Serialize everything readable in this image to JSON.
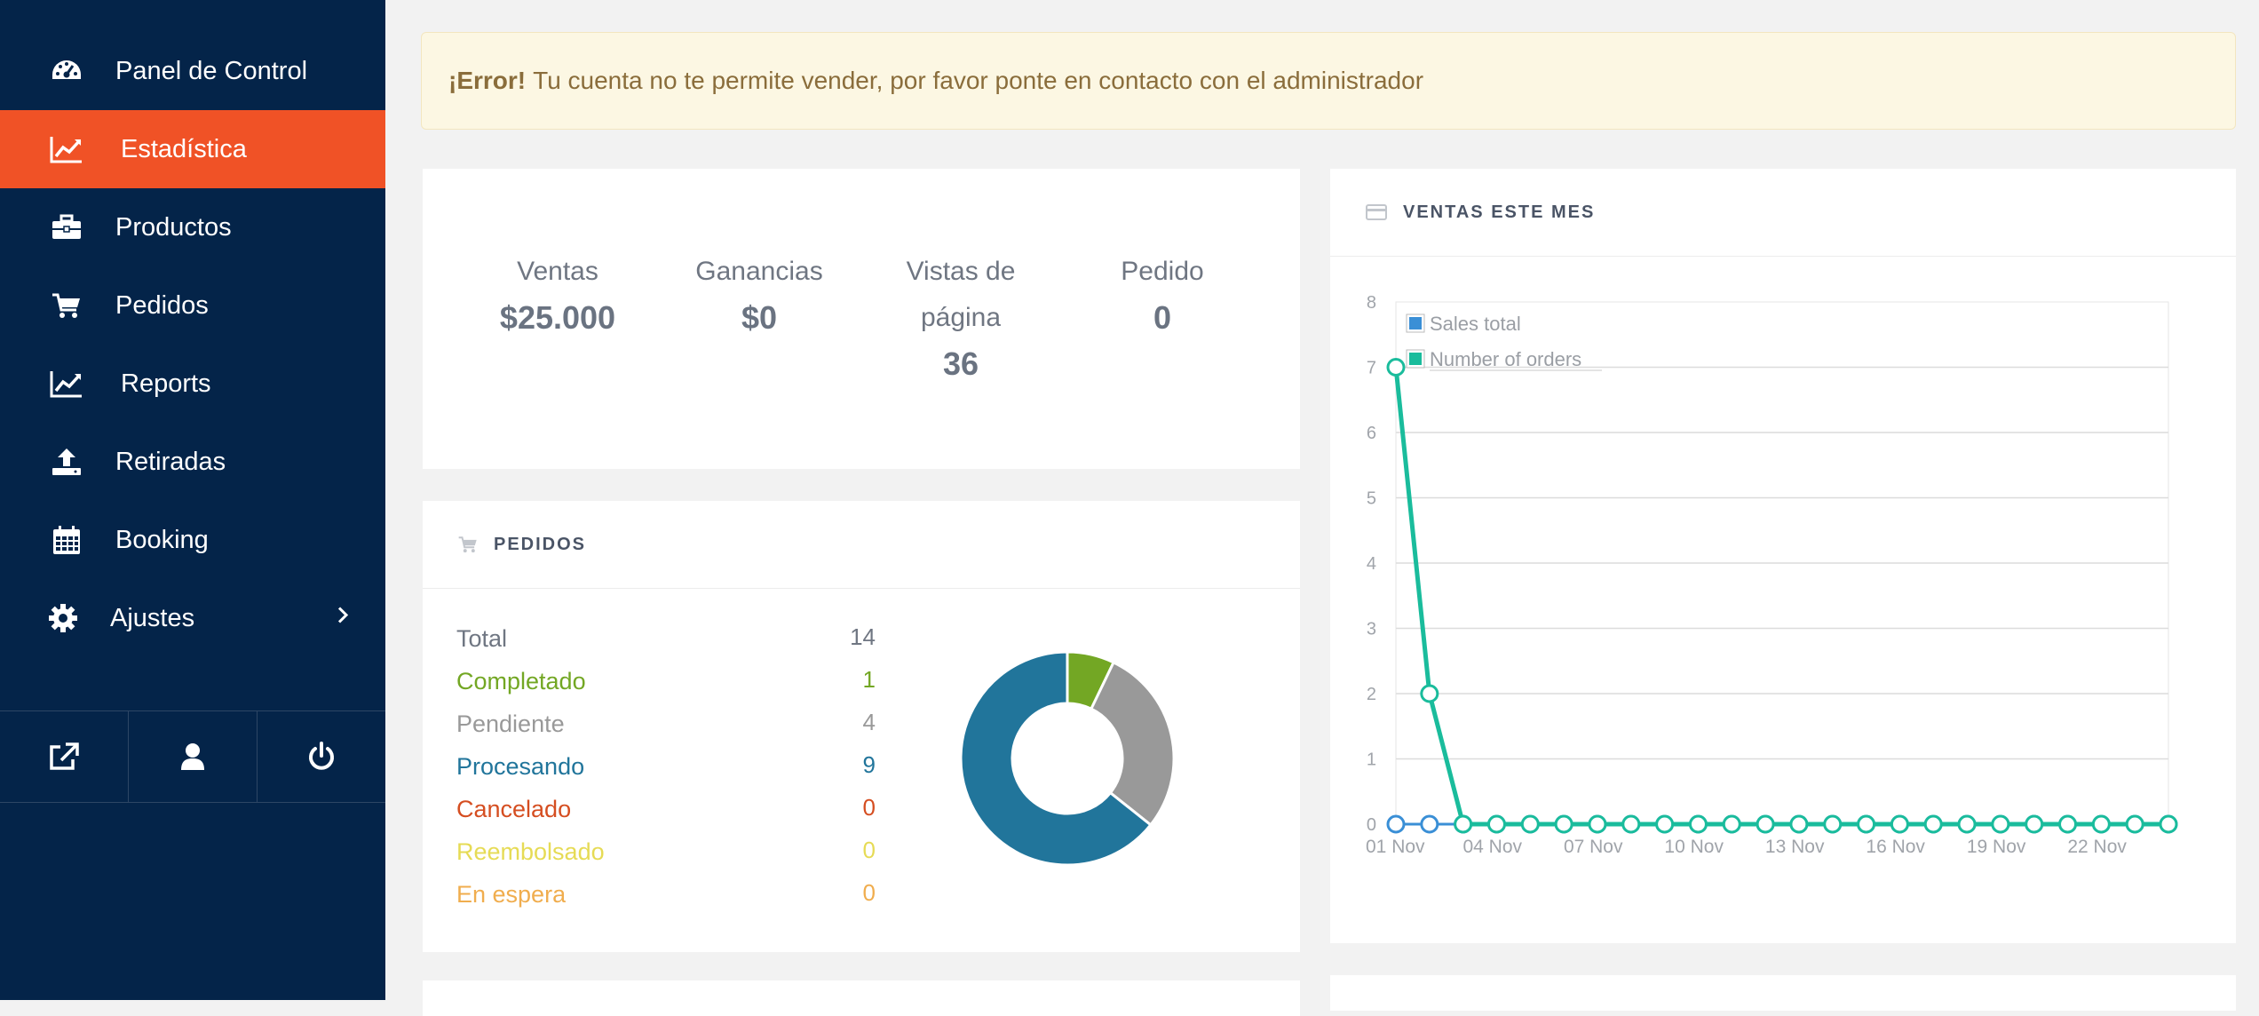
{
  "sidebar": {
    "items": [
      {
        "label": "Panel de Control",
        "icon": "dashboard-icon",
        "active": false
      },
      {
        "label": "Estadística",
        "icon": "line-chart-icon",
        "active": true
      },
      {
        "label": "Productos",
        "icon": "briefcase-icon",
        "active": false
      },
      {
        "label": "Pedidos",
        "icon": "cart-icon",
        "active": false
      },
      {
        "label": "Reports",
        "icon": "line-chart-icon",
        "active": false
      },
      {
        "label": "Retiradas",
        "icon": "upload-icon",
        "active": false
      },
      {
        "label": "Booking",
        "icon": "calendar-icon",
        "active": false
      },
      {
        "label": "Ajustes",
        "icon": "gear-icon",
        "active": false
      }
    ],
    "bottom_icons": [
      "external-link-icon",
      "user-icon",
      "power-icon"
    ],
    "colors": {
      "background": "#042449",
      "active": "#f05226"
    }
  },
  "alert": {
    "strong": "¡Error!",
    "message": "Tu cuenta no te permite vender, por favor ponte en contacto con el administrador"
  },
  "stats": {
    "sales": {
      "label": "Ventas",
      "value": "$25.000"
    },
    "earnings": {
      "label": "Ganancias",
      "value": "$0"
    },
    "pageviews": {
      "label": "Vistas de",
      "label2": "página",
      "value": "36"
    },
    "orders": {
      "label": "Pedido",
      "value": "0"
    }
  },
  "orders_card": {
    "title": "PEDIDOS",
    "rows": [
      {
        "label": "Total",
        "count": "14",
        "color": "#6f7682"
      },
      {
        "label": "Completado",
        "count": "1",
        "color": "#73a724"
      },
      {
        "label": "Pendiente",
        "count": "4",
        "color": "#999999"
      },
      {
        "label": "Procesando",
        "count": "9",
        "color": "#21759b"
      },
      {
        "label": "Cancelado",
        "count": "0",
        "color": "#d54e21"
      },
      {
        "label": "Reembolsado",
        "count": "0",
        "color": "#e6db55"
      },
      {
        "label": "En espera",
        "count": "0",
        "color": "#f0ad4e"
      }
    ]
  },
  "sales_card": {
    "title": "VENTAS ESTE MES"
  },
  "chart_data": [
    {
      "type": "pie",
      "subtype": "donut",
      "labels": [
        "Completado",
        "Pendiente",
        "Procesando"
      ],
      "values": [
        1,
        4,
        9
      ],
      "colors": [
        "#73a724",
        "#999999",
        "#21759b"
      ]
    },
    {
      "type": "line",
      "x": [
        "01 Nov",
        "02 Nov",
        "03 Nov",
        "04 Nov",
        "05 Nov",
        "06 Nov",
        "07 Nov",
        "08 Nov",
        "09 Nov",
        "10 Nov",
        "11 Nov",
        "12 Nov",
        "13 Nov",
        "14 Nov",
        "15 Nov",
        "16 Nov",
        "17 Nov",
        "18 Nov",
        "19 Nov",
        "20 Nov",
        "21 Nov",
        "22 Nov",
        "23 Nov",
        "24 Nov"
      ],
      "xticks": [
        "01 Nov",
        "04 Nov",
        "07 Nov",
        "10 Nov",
        "13 Nov",
        "16 Nov",
        "19 Nov",
        "22 Nov"
      ],
      "ylim": [
        0,
        8
      ],
      "yticks": [
        0,
        1,
        2,
        3,
        4,
        5,
        6,
        7,
        8
      ],
      "grid": true,
      "legend_position": "top-left",
      "series": [
        {
          "name": "Sales total",
          "color": "#3a8fd6",
          "values": [
            0,
            0,
            0,
            0,
            0,
            0,
            0,
            0,
            0,
            0,
            0,
            0,
            0,
            0,
            0,
            0,
            0,
            0,
            0,
            0,
            0,
            0,
            0,
            0
          ]
        },
        {
          "name": "Number of orders",
          "color": "#1abc9c",
          "values": [
            7,
            2,
            0,
            0,
            0,
            0,
            0,
            0,
            0,
            0,
            0,
            0,
            0,
            0,
            0,
            0,
            0,
            0,
            0,
            0,
            0,
            0,
            0,
            0
          ]
        }
      ]
    }
  ]
}
